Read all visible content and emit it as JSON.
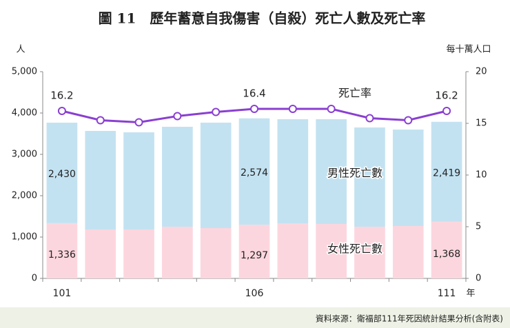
{
  "chart_data": {
    "type": "bar",
    "stacked": true,
    "title": "圖 11　歷年蓄意自我傷害（自殺）死亡人數及死亡率",
    "y_label": "人",
    "y2_label": "每十萬人口",
    "x_label": "年",
    "source": "資料來源：衛福部111年死因統計結果分析(含附表)",
    "categories": [
      "101",
      null,
      null,
      null,
      null,
      "106",
      null,
      null,
      null,
      null,
      "111"
    ],
    "series": [
      {
        "name": "女性死亡數",
        "type": "bar",
        "color": "#fcd6de",
        "label_color": "#d9536b",
        "values": [
          1336,
          1183,
          1183,
          1250,
          1217,
          1297,
          1333,
          1317,
          1250,
          1267,
          1368
        ],
        "value_labels": [
          "1,336",
          null,
          null,
          null,
          null,
          "1,297",
          null,
          null,
          null,
          null,
          "1,368"
        ]
      },
      {
        "name": "男性死亡數",
        "type": "bar",
        "color": "#c3e2f1",
        "label_color": "#4a5bc4",
        "values": [
          2430,
          2384,
          2350,
          2417,
          2550,
          2574,
          2517,
          2533,
          2400,
          2333,
          2419
        ],
        "value_labels": [
          "2,430",
          null,
          null,
          null,
          null,
          "2,574",
          null,
          null,
          null,
          null,
          "2,419"
        ]
      },
      {
        "name": "死亡率",
        "type": "line",
        "axis": "y2",
        "color": "#8a3fd1",
        "label_color": "#7f3fc8",
        "values": [
          16.2,
          15.3,
          15.1,
          15.7,
          16.1,
          16.4,
          16.4,
          16.4,
          15.5,
          15.3,
          16.2
        ],
        "value_labels": [
          "16.2",
          null,
          null,
          null,
          null,
          "16.4",
          null,
          null,
          null,
          null,
          "16.2"
        ]
      }
    ],
    "ylim": [
      0,
      5000
    ],
    "yticks": [
      0,
      {
        "value": 1000,
        "label": "1,000"
      },
      {
        "value": 2000,
        "label": "2,000"
      },
      {
        "value": 3000,
        "label": "3,000"
      },
      {
        "value": 4000,
        "label": "4,000"
      },
      {
        "value": 5000,
        "label": "5,000"
      }
    ],
    "y2lim": [
      0,
      20
    ],
    "y2ticks": [
      0,
      5,
      10,
      15,
      20
    ]
  }
}
